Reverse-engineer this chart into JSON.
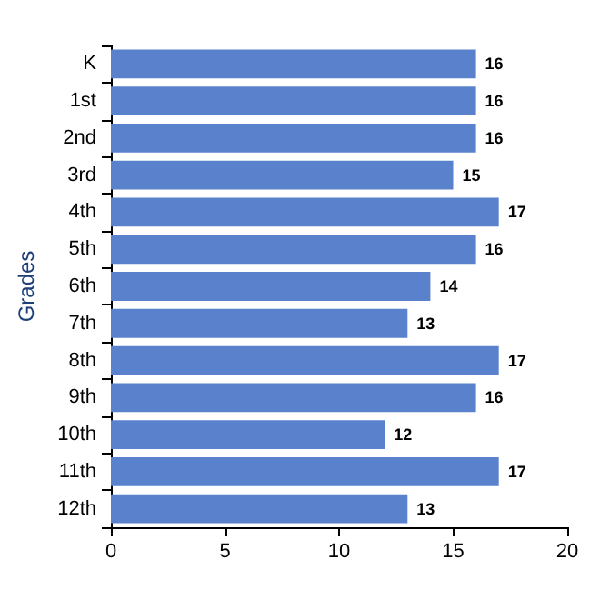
{
  "chart_data": {
    "type": "bar",
    "orientation": "horizontal",
    "ylabel": "Grades",
    "categories": [
      "K",
      "1st",
      "2nd",
      "3rd",
      "4th",
      "5th",
      "6th",
      "7th",
      "8th",
      "9th",
      "10th",
      "11th",
      "12th"
    ],
    "values": [
      16,
      16,
      16,
      15,
      17,
      16,
      14,
      13,
      17,
      16,
      12,
      17,
      13
    ],
    "color": "#5a82cc",
    "xlim": [
      0,
      20
    ],
    "xticks": [
      0,
      5,
      10,
      15,
      20
    ],
    "grid": false,
    "data_labels": true
  }
}
